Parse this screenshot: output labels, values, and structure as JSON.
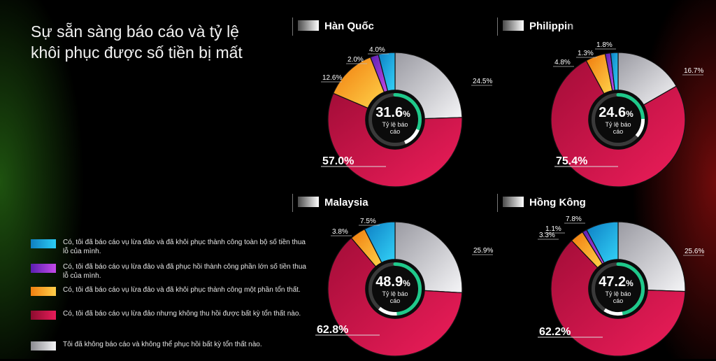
{
  "title_lines": [
    "Sự sẵn sàng báo cáo và tỷ lệ",
    "khôi phục được số tiền bị mất"
  ],
  "colors": {
    "full": "#19b6ea",
    "most": "#8e3fd8",
    "partial": "#f9a616",
    "none_recovered": "#d8154f",
    "not_reported": "#d6d6dc",
    "ring": "#1fc98b"
  },
  "legend": [
    {
      "key": "full",
      "label": "Có, tôi đã báo cáo vụ lừa đảo và đã khôi phục thành công toàn bộ số tiền thua lỗ của mình."
    },
    {
      "key": "most",
      "label": "Có, tôi đã báo cáo vụ lừa đảo và đã phục hồi thành công phần lớn số tiền thua lỗ của mình."
    },
    {
      "key": "partial",
      "label": "Có, tôi đã báo cáo vụ lừa đảo và đã khôi phục thành công một phần tổn thất."
    },
    {
      "key": "none_recovered",
      "label": "Có, tôi đã báo cáo vụ lừa đảo nhưng không thu hồi được bất kỳ tổn thất nào."
    },
    {
      "key": "not_reported",
      "label": "Tôi đã không báo cáo và không thể phục hồi bất kỳ tổn thất nào."
    }
  ],
  "chart_data": [
    {
      "type": "pie",
      "title": "Hàn Quốc",
      "center_value": "31.6",
      "center_unit": "%",
      "center_label": "Tỷ lệ báo cáo",
      "slices": [
        {
          "key": "full",
          "value": 4.0,
          "label": "4.0%"
        },
        {
          "key": "most",
          "value": 2.0,
          "label": "2.0%"
        },
        {
          "key": "partial",
          "value": 12.6,
          "label": "12.6%"
        },
        {
          "key": "none_recovered",
          "value": 57.0,
          "label": "57.0%"
        },
        {
          "key": "not_reported",
          "value": 24.5,
          "label": "24.5%"
        }
      ]
    },
    {
      "type": "pie",
      "title": "Philippin",
      "center_value": "24.6",
      "center_unit": "%",
      "center_label": "Tỷ lệ báo cáo",
      "slices": [
        {
          "key": "full",
          "value": 1.8,
          "label": "1.8%"
        },
        {
          "key": "most",
          "value": 1.3,
          "label": "1.3%"
        },
        {
          "key": "partial",
          "value": 4.8,
          "label": "4.8%"
        },
        {
          "key": "none_recovered",
          "value": 75.4,
          "label": "75.4%"
        },
        {
          "key": "not_reported",
          "value": 16.7,
          "label": "16.7%"
        }
      ]
    },
    {
      "type": "pie",
      "title": "Malaysia",
      "center_value": "48.9",
      "center_unit": "%",
      "center_label": "Tỷ lệ báo cáo",
      "slices": [
        {
          "key": "full",
          "value": 7.5,
          "label": "7.5%"
        },
        {
          "key": "partial",
          "value": 3.8,
          "label": "3.8%"
        },
        {
          "key": "none_recovered",
          "value": 62.8,
          "label": "62.8%"
        },
        {
          "key": "not_reported",
          "value": 25.9,
          "label": "25.9%"
        }
      ]
    },
    {
      "type": "pie",
      "title": "Hồng Kông",
      "center_value": "47.2",
      "center_unit": "%",
      "center_label": "Tỷ lệ báo cáo",
      "slices": [
        {
          "key": "full",
          "value": 7.8,
          "label": "7.8%"
        },
        {
          "key": "most",
          "value": 1.1,
          "label": "1.1%"
        },
        {
          "key": "partial",
          "value": 3.3,
          "label": "3.3%"
        },
        {
          "key": "none_recovered",
          "value": 62.2,
          "label": "62.2%"
        },
        {
          "key": "not_reported",
          "value": 25.6,
          "label": "25.6%"
        }
      ]
    }
  ]
}
